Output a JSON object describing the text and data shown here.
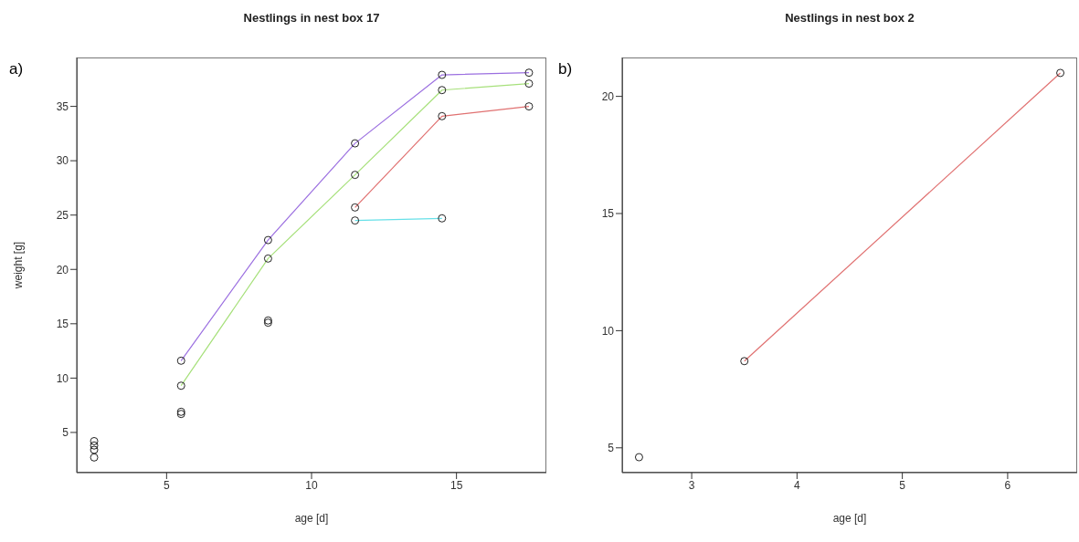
{
  "chart_data": [
    {
      "type": "line",
      "title": "Nestlings in nest box 17",
      "xlabel": "age [d]",
      "ylabel": "weight [g]",
      "annotations": [
        "a)"
      ],
      "xlim": [
        1.9,
        18.1
      ],
      "ylim": [
        1.3,
        39.5
      ],
      "xticks": [
        5,
        10,
        15
      ],
      "yticks": [
        5,
        10,
        15,
        20,
        25,
        30,
        35
      ],
      "marker": "circle",
      "grid": false,
      "series": [
        {
          "color": "#9b6fe0",
          "x": [
            5.5,
            8.5,
            11.5,
            14.5,
            17.5
          ],
          "values": [
            11.6,
            22.7,
            31.6,
            37.9,
            38.1
          ]
        },
        {
          "color": "#a6e07a",
          "x": [
            5.5,
            8.5,
            11.5,
            14.5,
            17.5
          ],
          "values": [
            9.3,
            21.0,
            28.7,
            36.5,
            37.1
          ]
        },
        {
          "color": "#e07070",
          "x": [
            11.5,
            14.5,
            17.5
          ],
          "values": [
            25.7,
            34.1,
            35.0
          ]
        },
        {
          "color": "#66e0e8",
          "x": [
            11.5,
            14.5
          ],
          "values": [
            24.5,
            24.7
          ]
        },
        {
          "type": "scatter",
          "color": "#222222",
          "x": [
            2.5,
            2.5,
            2.5,
            2.5,
            5.5,
            5.5,
            8.5,
            8.5
          ],
          "values": [
            4.2,
            3.8,
            3.4,
            2.7,
            6.9,
            6.7,
            15.3,
            15.1
          ]
        }
      ]
    },
    {
      "type": "line",
      "title": "Nestlings in nest box 2",
      "xlabel": "age [d]",
      "annotations": [
        "b)"
      ],
      "xlim": [
        2.34,
        6.66
      ],
      "ylim": [
        3.94,
        21.66
      ],
      "xticks": [
        3,
        4,
        5,
        6
      ],
      "yticks": [
        5,
        10,
        15,
        20
      ],
      "marker": "circle",
      "grid": false,
      "series": [
        {
          "color": "#e07070",
          "x": [
            3.5,
            6.5
          ],
          "values": [
            8.7,
            21.0
          ]
        },
        {
          "type": "scatter",
          "color": "#222222",
          "x": [
            2.5
          ],
          "values": [
            4.6
          ]
        }
      ]
    }
  ]
}
